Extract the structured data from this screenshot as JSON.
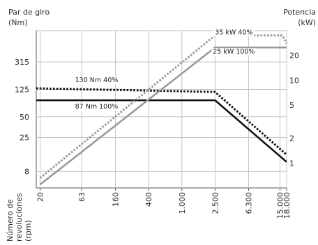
{
  "chart_data": {
    "type": "line",
    "y_left_title_line1": "Par de giro",
    "y_left_title_line2": "(Nm)",
    "y_right_title_line1": "Potencia",
    "y_right_title_line2": "(kW)",
    "x_title_line1": "Número de",
    "x_title_line2": "revoluciones",
    "x_title_line3": "(rpm)",
    "x_scale": "log",
    "y_left_scale": "log",
    "y_right_scale": "log",
    "grid": true,
    "x_ticks": [
      {
        "value": 20,
        "label": "20"
      },
      {
        "value": 63,
        "label": "63"
      },
      {
        "value": 160,
        "label": "160"
      },
      {
        "value": 400,
        "label": "400"
      },
      {
        "value": 1000,
        "label": "1.000"
      },
      {
        "value": 2500,
        "label": "2.500"
      },
      {
        "value": 6300,
        "label": "6.300"
      },
      {
        "value": 15000,
        "label": "15.000"
      },
      {
        "value": 18000,
        "label": "18.000"
      }
    ],
    "y_left_ticks": [
      {
        "value": 8,
        "label": "8"
      },
      {
        "value": 25,
        "label": "25"
      },
      {
        "value": 50,
        "label": "50"
      },
      {
        "value": 125,
        "label": "125"
      },
      {
        "value": 315,
        "label": "315"
      }
    ],
    "y_right_ticks": [
      {
        "value": 1,
        "label": "1"
      },
      {
        "value": 2,
        "label": "2"
      },
      {
        "value": 5,
        "label": "5"
      },
      {
        "value": 10,
        "label": "10"
      },
      {
        "value": 20,
        "label": "20"
      }
    ],
    "series": [
      {
        "key": "torque_40",
        "axis": "left",
        "style": "dotted",
        "color": "#111111",
        "x": [
          18,
          2500,
          18000
        ],
        "y": [
          130,
          115,
          14
        ]
      },
      {
        "key": "torque_100",
        "axis": "left",
        "style": "solid",
        "color": "#111111",
        "x": [
          18,
          2500,
          18000
        ],
        "y": [
          87,
          87,
          11
        ]
      },
      {
        "key": "power_40",
        "axis": "right",
        "style": "dotted",
        "color": "#9a9a9a",
        "x": [
          20,
          2500,
          16000,
          18000
        ],
        "y": [
          0.66,
          35,
          35,
          28
        ]
      },
      {
        "key": "power_100",
        "axis": "right",
        "style": "solid",
        "color": "#9a9a9a",
        "x": [
          20,
          2500,
          18000
        ],
        "y": [
          0.55,
          25,
          25
        ]
      }
    ],
    "annotations": [
      {
        "key": "ann_power_40",
        "text": "35 kW 40%",
        "x": 4200,
        "axis": "right",
        "y": 36
      },
      {
        "key": "ann_power_100",
        "text": "25 kW 100%",
        "x": 4200,
        "axis": "right",
        "y": 21
      },
      {
        "key": "ann_torque_40",
        "text": "130 Nm 40%",
        "x": 95,
        "axis": "left",
        "y": 160
      },
      {
        "key": "ann_torque_100",
        "text": "87 Nm 100%",
        "x": 95,
        "axis": "left",
        "y": 66
      }
    ]
  }
}
